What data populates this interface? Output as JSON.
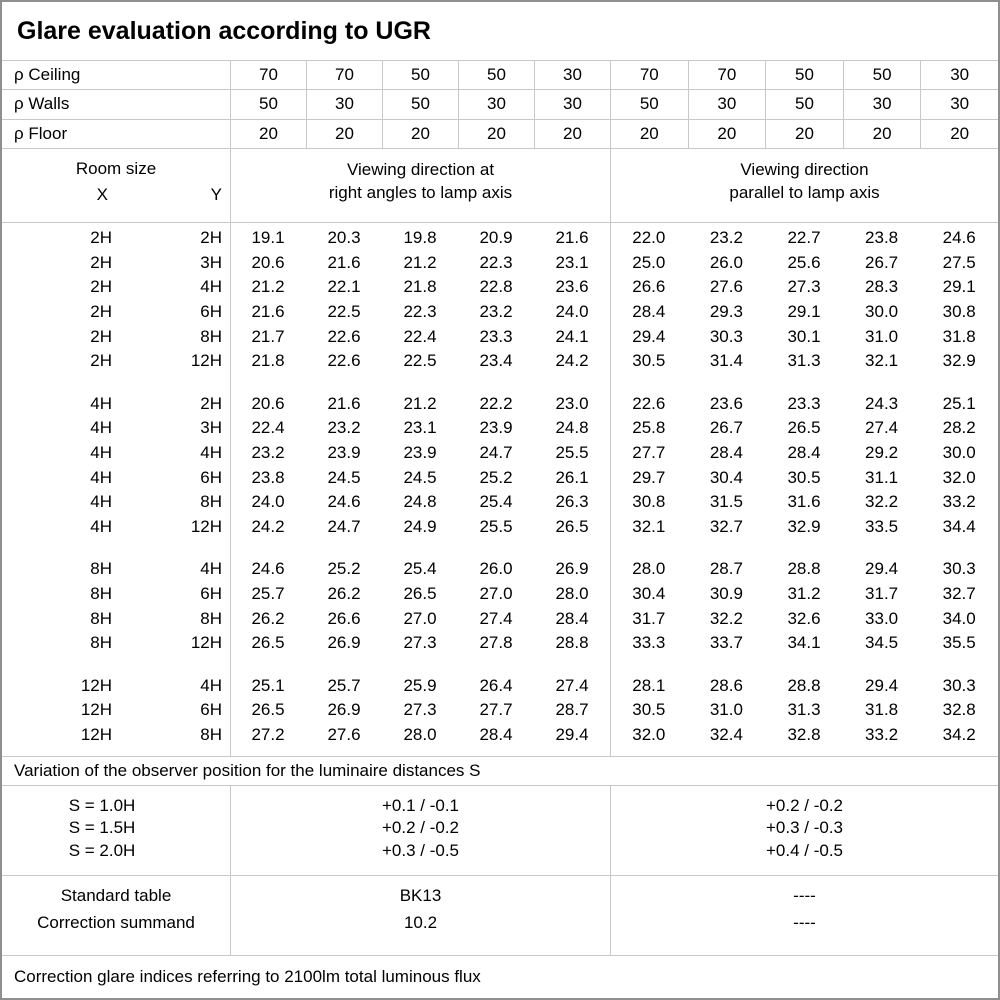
{
  "title": "Glare evaluation according to UGR",
  "colors": {
    "grid_line": "#c8c8c8",
    "outer_border": "#8f8f8f",
    "text": "#000000",
    "background": "#ffffff"
  },
  "reflectance": {
    "rows": [
      {
        "label": "ρ Ceiling",
        "values": [
          "70",
          "70",
          "50",
          "50",
          "30",
          "70",
          "70",
          "50",
          "50",
          "30"
        ]
      },
      {
        "label": "ρ Walls",
        "values": [
          "50",
          "30",
          "50",
          "30",
          "30",
          "50",
          "30",
          "50",
          "30",
          "30"
        ]
      },
      {
        "label": "ρ Floor",
        "values": [
          "20",
          "20",
          "20",
          "20",
          "20",
          "20",
          "20",
          "20",
          "20",
          "20"
        ]
      }
    ]
  },
  "room_header": {
    "room_size_label": "Room size",
    "x_label": "X",
    "y_label": "Y",
    "right_angles_header": {
      "line1": "Viewing direction at",
      "line2": "right angles to lamp axis"
    },
    "parallel_header": {
      "line1": "Viewing direction",
      "line2": "parallel to lamp axis"
    }
  },
  "ugr_groups": [
    {
      "rows": [
        {
          "x": "2H",
          "y": "2H",
          "right_angles": [
            "19.1",
            "20.3",
            "19.8",
            "20.9",
            "21.6"
          ],
          "parallel": [
            "22.0",
            "23.2",
            "22.7",
            "23.8",
            "24.6"
          ]
        },
        {
          "x": "2H",
          "y": "3H",
          "right_angles": [
            "20.6",
            "21.6",
            "21.2",
            "22.3",
            "23.1"
          ],
          "parallel": [
            "25.0",
            "26.0",
            "25.6",
            "26.7",
            "27.5"
          ]
        },
        {
          "x": "2H",
          "y": "4H",
          "right_angles": [
            "21.2",
            "22.1",
            "21.8",
            "22.8",
            "23.6"
          ],
          "parallel": [
            "26.6",
            "27.6",
            "27.3",
            "28.3",
            "29.1"
          ]
        },
        {
          "x": "2H",
          "y": "6H",
          "right_angles": [
            "21.6",
            "22.5",
            "22.3",
            "23.2",
            "24.0"
          ],
          "parallel": [
            "28.4",
            "29.3",
            "29.1",
            "30.0",
            "30.8"
          ]
        },
        {
          "x": "2H",
          "y": "8H",
          "right_angles": [
            "21.7",
            "22.6",
            "22.4",
            "23.3",
            "24.1"
          ],
          "parallel": [
            "29.4",
            "30.3",
            "30.1",
            "31.0",
            "31.8"
          ]
        },
        {
          "x": "2H",
          "y": "12H",
          "right_angles": [
            "21.8",
            "22.6",
            "22.5",
            "23.4",
            "24.2"
          ],
          "parallel": [
            "30.5",
            "31.4",
            "31.3",
            "32.1",
            "32.9"
          ]
        }
      ]
    },
    {
      "rows": [
        {
          "x": "4H",
          "y": "2H",
          "right_angles": [
            "20.6",
            "21.6",
            "21.2",
            "22.2",
            "23.0"
          ],
          "parallel": [
            "22.6",
            "23.6",
            "23.3",
            "24.3",
            "25.1"
          ]
        },
        {
          "x": "4H",
          "y": "3H",
          "right_angles": [
            "22.4",
            "23.2",
            "23.1",
            "23.9",
            "24.8"
          ],
          "parallel": [
            "25.8",
            "26.7",
            "26.5",
            "27.4",
            "28.2"
          ]
        },
        {
          "x": "4H",
          "y": "4H",
          "right_angles": [
            "23.2",
            "23.9",
            "23.9",
            "24.7",
            "25.5"
          ],
          "parallel": [
            "27.7",
            "28.4",
            "28.4",
            "29.2",
            "30.0"
          ]
        },
        {
          "x": "4H",
          "y": "6H",
          "right_angles": [
            "23.8",
            "24.5",
            "24.5",
            "25.2",
            "26.1"
          ],
          "parallel": [
            "29.7",
            "30.4",
            "30.5",
            "31.1",
            "32.0"
          ]
        },
        {
          "x": "4H",
          "y": "8H",
          "right_angles": [
            "24.0",
            "24.6",
            "24.8",
            "25.4",
            "26.3"
          ],
          "parallel": [
            "30.8",
            "31.5",
            "31.6",
            "32.2",
            "33.2"
          ]
        },
        {
          "x": "4H",
          "y": "12H",
          "right_angles": [
            "24.2",
            "24.7",
            "24.9",
            "25.5",
            "26.5"
          ],
          "parallel": [
            "32.1",
            "32.7",
            "32.9",
            "33.5",
            "34.4"
          ]
        }
      ]
    },
    {
      "rows": [
        {
          "x": "8H",
          "y": "4H",
          "right_angles": [
            "24.6",
            "25.2",
            "25.4",
            "26.0",
            "26.9"
          ],
          "parallel": [
            "28.0",
            "28.7",
            "28.8",
            "29.4",
            "30.3"
          ]
        },
        {
          "x": "8H",
          "y": "6H",
          "right_angles": [
            "25.7",
            "26.2",
            "26.5",
            "27.0",
            "28.0"
          ],
          "parallel": [
            "30.4",
            "30.9",
            "31.2",
            "31.7",
            "32.7"
          ]
        },
        {
          "x": "8H",
          "y": "8H",
          "right_angles": [
            "26.2",
            "26.6",
            "27.0",
            "27.4",
            "28.4"
          ],
          "parallel": [
            "31.7",
            "32.2",
            "32.6",
            "33.0",
            "34.0"
          ]
        },
        {
          "x": "8H",
          "y": "12H",
          "right_angles": [
            "26.5",
            "26.9",
            "27.3",
            "27.8",
            "28.8"
          ],
          "parallel": [
            "33.3",
            "33.7",
            "34.1",
            "34.5",
            "35.5"
          ]
        }
      ]
    },
    {
      "rows": [
        {
          "x": "12H",
          "y": "4H",
          "right_angles": [
            "25.1",
            "25.7",
            "25.9",
            "26.4",
            "27.4"
          ],
          "parallel": [
            "28.1",
            "28.6",
            "28.8",
            "29.4",
            "30.3"
          ]
        },
        {
          "x": "12H",
          "y": "6H",
          "right_angles": [
            "26.5",
            "26.9",
            "27.3",
            "27.7",
            "28.7"
          ],
          "parallel": [
            "30.5",
            "31.0",
            "31.3",
            "31.8",
            "32.8"
          ]
        },
        {
          "x": "12H",
          "y": "8H",
          "right_angles": [
            "27.2",
            "27.6",
            "28.0",
            "28.4",
            "29.4"
          ],
          "parallel": [
            "32.0",
            "32.4",
            "32.8",
            "33.2",
            "34.2"
          ]
        }
      ]
    }
  ],
  "variation_note": "Variation of the observer position for the luminaire distances S",
  "spacing_rows": [
    {
      "label": "S = 1.0H",
      "right_angles": "+0.1 / -0.1",
      "parallel": "+0.2 / -0.2"
    },
    {
      "label": "S = 1.5H",
      "right_angles": "+0.2 / -0.2",
      "parallel": "+0.3 / -0.3"
    },
    {
      "label": "S = 2.0H",
      "right_angles": "+0.3 / -0.5",
      "parallel": "+0.4 / -0.5"
    }
  ],
  "summary_rows": [
    {
      "label": "Standard table",
      "right_angles": "BK13",
      "parallel": "----"
    },
    {
      "label": "Correction summand",
      "right_angles": "10.2",
      "parallel": "----"
    }
  ],
  "footer_note": "Correction glare indices referring to 2100lm total luminous flux"
}
